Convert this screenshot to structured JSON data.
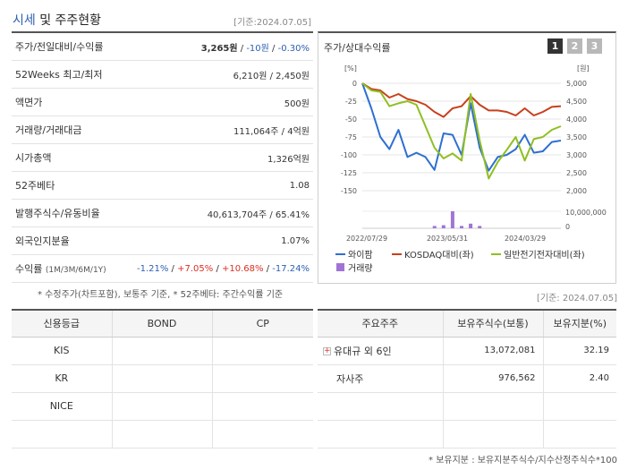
{
  "header": {
    "title_main": "시세",
    "title_rest": " 및 주주현황",
    "date": "[기준:2024.07.05]"
  },
  "info": {
    "price_label": "주가/전일대비/수익률",
    "price": "3,265원",
    "change": "-10원",
    "change_pct": "-0.30%",
    "w52_label": "52Weeks 최고/최저",
    "w52_value": "6,210원 / 2,450원",
    "par_label": "액면가",
    "par_value": "500원",
    "volume_label": "거래량/거래대금",
    "volume_value": "111,064주 / 4억원",
    "mcap_label": "시가총액",
    "mcap_value": "1,326억원",
    "beta_label": "52주베타",
    "beta_value": "1.08",
    "shares_label": "발행주식수/유동비율",
    "shares_value": "40,613,704주 / 65.41%",
    "foreign_label": "외국인지분율",
    "foreign_value": "1.07%",
    "return_label": "수익률",
    "return_periods": "(1M/3M/6M/1Y)",
    "r1m": "-1.21%",
    "r3m": "+7.05%",
    "r6m": "+10.68%",
    "r1y": "-17.24%"
  },
  "footnote1": "* 수정주가(차트포함), 보통주 기준, * 52주베타: 주간수익률 기준",
  "chart": {
    "title": "주가/상대수익률",
    "tabs": [
      "1",
      "2",
      "3"
    ],
    "left_unit": "[%]",
    "right_unit": "[원]",
    "left_ticks": [
      "0",
      "-25",
      "-50",
      "-75",
      "-100",
      "-125",
      "-150"
    ],
    "right_ticks": [
      "5,000",
      "4,500",
      "4,000",
      "3,500",
      "3,000",
      "2,500",
      "2,000"
    ],
    "volume_tick_top": "10,000,000",
    "volume_tick_bottom": "0",
    "x_ticks": [
      "2022/07/29",
      "2023/05/31",
      "2024/03/29"
    ],
    "legend": [
      "와이팜",
      "KOSDAQ대비(좌)",
      "일반전기전자대비(좌)",
      "거래량"
    ],
    "colors": {
      "stock": "#2e6fd1",
      "kosdaq": "#c8401c",
      "sector": "#8fbf22",
      "volume": "#a074d6"
    }
  },
  "chart_data": {
    "type": "line",
    "y_left_range": [
      -150,
      0
    ],
    "series": [
      {
        "name": "와이팜",
        "values": [
          0,
          -35,
          -75,
          -92,
          -65,
          -103,
          -97,
          -103,
          -121,
          -70,
          -72,
          -100,
          -28,
          -90,
          -122,
          -103,
          -100,
          -92,
          -72,
          -97,
          -95,
          -82,
          -80
        ]
      },
      {
        "name": "KOSDAQ대비(좌)",
        "values": [
          0,
          -8,
          -10,
          -20,
          -15,
          -22,
          -25,
          -30,
          -40,
          -47,
          -35,
          -32,
          -18,
          -30,
          -38,
          -38,
          -40,
          -45,
          -35,
          -45,
          -40,
          -33,
          -32
        ]
      },
      {
        "name": "일반전기전자대비(좌)",
        "values": [
          0,
          -10,
          -12,
          -32,
          -28,
          -25,
          -30,
          -60,
          -90,
          -105,
          -98,
          -108,
          -15,
          -80,
          -133,
          -110,
          -93,
          -75,
          -108,
          -78,
          -75,
          -65,
          -60
        ]
      },
      {
        "name": "거래량",
        "values": [
          0,
          0,
          0,
          0,
          0,
          0,
          0,
          0,
          0.3,
          0.4,
          2.2,
          0.3,
          0.6,
          0.3,
          0,
          0,
          0,
          0,
          0,
          0,
          0,
          0,
          0
        ]
      }
    ]
  },
  "date2": "[기준: 2024.07.05]",
  "credit": {
    "headers": [
      "신용등급",
      "BOND",
      "CP"
    ],
    "rows": [
      [
        "KIS",
        "",
        ""
      ],
      [
        "KR",
        "",
        ""
      ],
      [
        "NICE",
        "",
        ""
      ],
      [
        "",
        "",
        ""
      ]
    ]
  },
  "shareholders": {
    "headers": [
      "주요주주",
      "보유주식수(보통)",
      "보유지분(%)"
    ],
    "rows": [
      {
        "name": "유대규 외 6인",
        "shares": "13,072,081",
        "pct": "32.19",
        "expand": "+"
      },
      {
        "name": "자사주",
        "shares": "976,562",
        "pct": "2.40"
      }
    ]
  },
  "footnote2": "* 보유지분 : 보유지분주식수/지수산정주식수*100"
}
